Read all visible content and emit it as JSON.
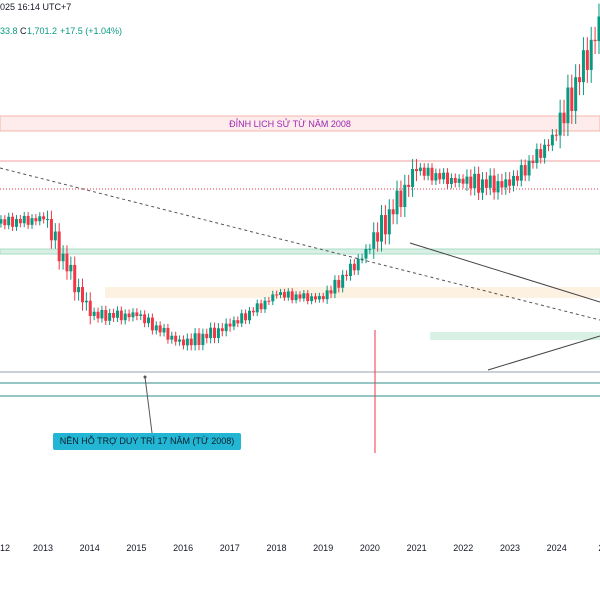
{
  "header": {
    "timestamp": "025 16:14 UTC+7",
    "open_fragment": "33.8",
    "close_label": "C",
    "close_value": "1,701.2",
    "change": "+17.5 (+1.04%)"
  },
  "annotations": {
    "resistance_label": "ĐỈNH LỊCH SỬ TỪ NĂM 2008",
    "support_label": "NỀN HỖ TRỢ  DUY TRÌ 17 NĂM (TỪ 2008)"
  },
  "colors": {
    "up": "#089981",
    "down": "#f23645",
    "resistance_zone": "#f4b6a8",
    "support_zone": "#a8dcc6",
    "callout": "#22b5d4",
    "label_purple": "#9c27b0"
  },
  "chart_data": {
    "type": "candlestick",
    "timeframe": "monthly",
    "x_tick_labels": [
      "12",
      "2013",
      "2014",
      "2015",
      "2016",
      "2017",
      "2018",
      "2019",
      "2020",
      "2021",
      "2022",
      "2023",
      "2024",
      "20"
    ],
    "x_range": [
      2012.0,
      2025.5
    ],
    "y_axis_visible": false,
    "grid": false,
    "ohlc_yearly_approx": [
      {
        "year": 2012,
        "open": 1640,
        "high": 1790,
        "low": 1540,
        "close": 1660
      },
      {
        "year": 2013,
        "open": 1660,
        "high": 1700,
        "low": 1180,
        "close": 1200
      },
      {
        "year": 2014,
        "open": 1200,
        "high": 1390,
        "low": 1130,
        "close": 1200
      },
      {
        "year": 2015,
        "open": 1200,
        "high": 1300,
        "low": 1050,
        "close": 1060
      },
      {
        "year": 2016,
        "open": 1060,
        "high": 1370,
        "low": 1050,
        "close": 1150
      },
      {
        "year": 2017,
        "open": 1150,
        "high": 1350,
        "low": 1120,
        "close": 1300
      },
      {
        "year": 2018,
        "open": 1300,
        "high": 1360,
        "low": 1160,
        "close": 1280
      },
      {
        "year": 2019,
        "open": 1280,
        "high": 1560,
        "low": 1270,
        "close": 1520
      },
      {
        "year": 2020,
        "open": 1520,
        "high": 2070,
        "low": 1450,
        "close": 1890
      },
      {
        "year": 2021,
        "open": 1890,
        "high": 1960,
        "low": 1680,
        "close": 1830
      },
      {
        "year": 2022,
        "open": 1830,
        "high": 2070,
        "low": 1620,
        "close": 1820
      },
      {
        "year": 2023,
        "open": 1820,
        "high": 2150,
        "low": 1800,
        "close": 2060
      },
      {
        "year": 2024,
        "open": 2060,
        "high": 2790,
        "low": 1990,
        "close": 2620
      },
      {
        "year": 2025,
        "open": 2620,
        "high": 2700,
        "low": 2600,
        "close": 1701
      }
    ]
  }
}
